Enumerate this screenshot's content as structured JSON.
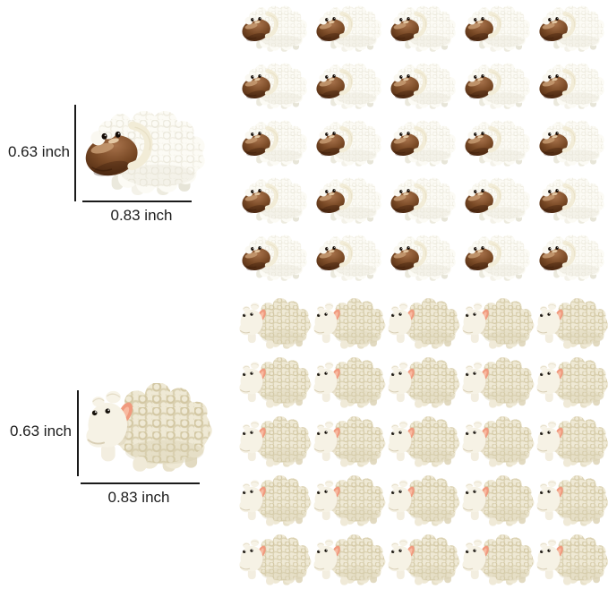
{
  "page": {
    "background": "#ffffff"
  },
  "colors": {
    "measure_line": "#1a1a1a",
    "label_text": "#1c1c1c",
    "brown_face": "#6b3d1e",
    "wool_white": "#fcfbf5",
    "wool_cream": "#efe9d5",
    "ear_pink": "#f09a7e"
  },
  "size_diagrams": [
    {
      "sheep": "brown-face-sheep",
      "height_label": "0.63 inch",
      "width_label": "0.83 inch"
    },
    {
      "sheep": "cream-sheep",
      "height_label": "0.63 inch",
      "width_label": "0.83 inch"
    }
  ],
  "grid": {
    "columns": 5,
    "sections": [
      {
        "sheep": "brown-face-sheep",
        "rows": 5
      },
      {
        "sheep": "cream-sheep",
        "rows": 5
      }
    ]
  }
}
